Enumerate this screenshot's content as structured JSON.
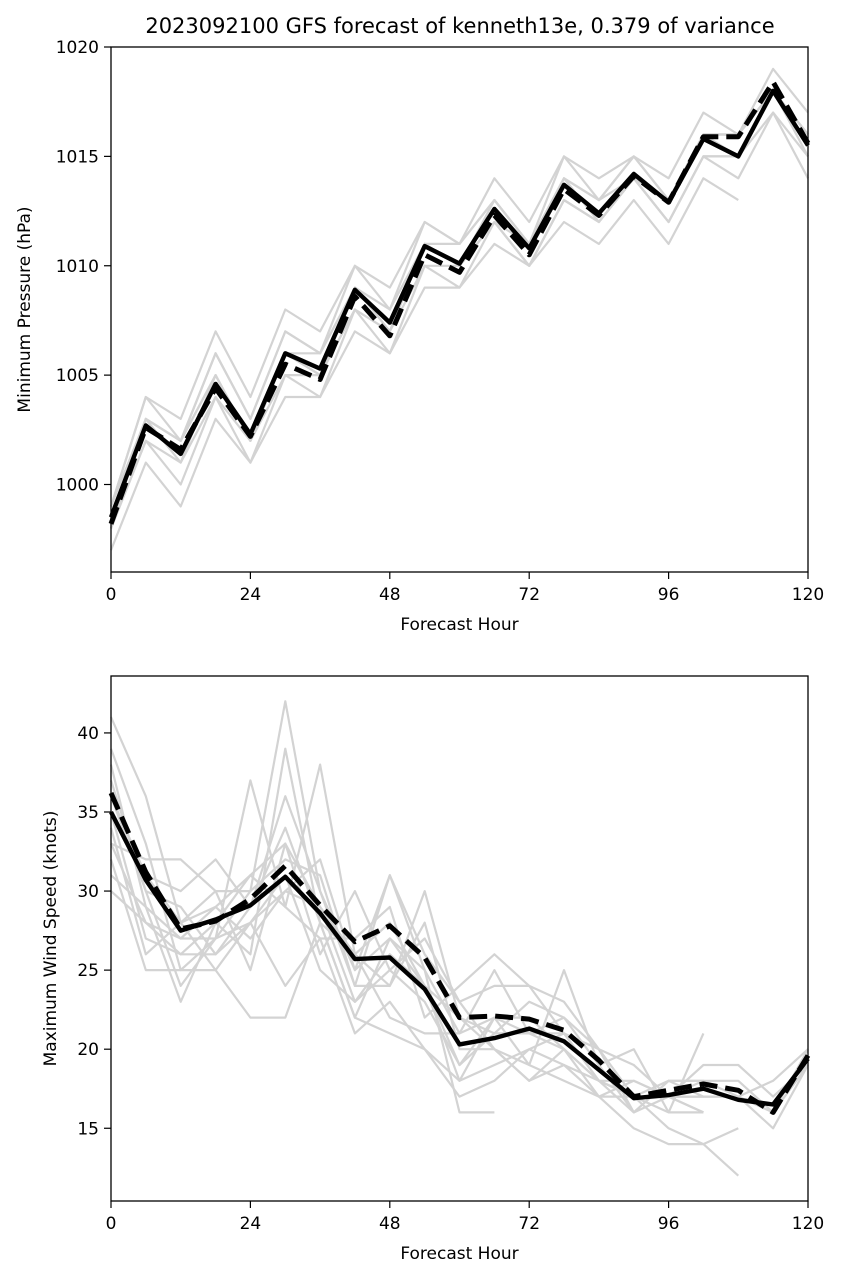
{
  "figure": {
    "title": "2023092100 GFS forecast of kenneth13e, 0.379 of variance"
  },
  "colors": {
    "ensemble": "#d3d3d3",
    "mean": "#000000",
    "axis": "#000000"
  },
  "chart_data": [
    {
      "type": "line",
      "title": "2023092100 GFS forecast of kenneth13e, 0.379 of variance",
      "xlabel": "Forecast Hour",
      "ylabel": "Minimum Pressure (hPa)",
      "xlim": [
        0,
        120
      ],
      "ylim": [
        996,
        1020
      ],
      "xticks": [
        0,
        24,
        48,
        72,
        96,
        120
      ],
      "yticks": [
        1000,
        1005,
        1010,
        1015,
        1020
      ],
      "grid": false,
      "legend": "none",
      "x": [
        0,
        6,
        12,
        18,
        24,
        30,
        36,
        42,
        48,
        54,
        60,
        66,
        72,
        78,
        84,
        90,
        96,
        102,
        108,
        114,
        120
      ],
      "series": [
        {
          "style": "ensemble",
          "values": [
            999,
            1004,
            1003,
            1007,
            1004,
            1008,
            1007,
            1010,
            1009,
            1012,
            1011,
            1014,
            1012,
            1015,
            1014,
            1015,
            1014,
            1017,
            1016,
            1019,
            1017
          ]
        },
        {
          "style": "ensemble",
          "values": [
            998,
            1003,
            1002,
            1006,
            1003,
            1007,
            1006,
            1010,
            1008,
            1012,
            1011,
            1013,
            1011,
            1015,
            1013,
            1015,
            1013,
            1016,
            1016,
            1018,
            1016
          ]
        },
        {
          "style": "ensemble",
          "values": [
            997,
            1001,
            999,
            1003,
            1001,
            1004,
            1004,
            1007,
            1006,
            1009,
            1009,
            1011,
            1010,
            1012,
            1011,
            1013,
            1011,
            1014,
            1013,
            null,
            null
          ]
        },
        {
          "style": "ensemble",
          "values": [
            998,
            1002,
            1000,
            1004,
            1002,
            1005,
            1005,
            1008,
            1007,
            1010,
            1010,
            1012,
            1010,
            1013,
            1012,
            1014,
            1012,
            1015,
            1014,
            1017,
            1014
          ]
        },
        {
          "style": "ensemble",
          "values": [
            999,
            1003,
            1001,
            1005,
            1002,
            1006,
            1005,
            1009,
            1007,
            1011,
            1010,
            1012,
            1011,
            1014,
            1012,
            1014,
            1013,
            1016,
            1015,
            1018,
            1016
          ]
        },
        {
          "style": "ensemble",
          "values": [
            998,
            1002,
            1001,
            1004,
            1001,
            1005,
            1004,
            1008,
            1006,
            1010,
            1009,
            1012,
            1010,
            1013,
            1012,
            1014,
            1012,
            1015,
            1015,
            1017,
            1015
          ]
        },
        {
          "style": "ensemble",
          "values": [
            999,
            1004,
            1002,
            1006,
            1003,
            1007,
            1006,
            1009,
            1008,
            1011,
            1010,
            1013,
            1011,
            1014,
            1013,
            1015,
            1013,
            1016,
            1016,
            1018,
            1016
          ]
        },
        {
          "style": "ensemble",
          "values": [
            998,
            1003,
            1002,
            1005,
            1002,
            1006,
            1005,
            1008,
            1007,
            1011,
            1010,
            1012,
            1010,
            1013,
            1012,
            1014,
            1012,
            1015,
            1015,
            1018,
            1015
          ]
        },
        {
          "style": "ensemble",
          "values": [
            998,
            1003,
            1002,
            1005,
            1002,
            1006,
            1006,
            1009,
            1007,
            1011,
            1011,
            1013,
            1011,
            1014,
            1013,
            1014,
            1013,
            1016,
            1016,
            1018,
            1016
          ]
        },
        {
          "style": "mean-dashed",
          "values": [
            998.2,
            1002.6,
            1001.6,
            1004.4,
            1002.2,
            1005.5,
            1004.8,
            1008.6,
            1006.8,
            1010.5,
            1009.7,
            1012.3,
            1010.5,
            1013.5,
            1012.3,
            1014.1,
            1012.9,
            1015.9,
            1015.9,
            1018.4,
            1015.6
          ]
        },
        {
          "style": "mean-solid",
          "values": [
            998.5,
            1002.7,
            1001.4,
            1004.6,
            1002.3,
            1006.0,
            1005.3,
            1008.9,
            1007.4,
            1010.9,
            1010.1,
            1012.6,
            1010.8,
            1013.7,
            1012.4,
            1014.2,
            1012.9,
            1015.8,
            1015.0,
            1018.0,
            1015.5
          ]
        }
      ]
    },
    {
      "type": "line",
      "title": "",
      "xlabel": "Forecast Hour",
      "ylabel": "Maximum Wind Speed (knots)",
      "xlim": [
        0,
        120
      ],
      "ylim": [
        10.4,
        43.6
      ],
      "xticks": [
        0,
        24,
        48,
        72,
        96,
        120
      ],
      "yticks": [
        15,
        20,
        25,
        30,
        35,
        40
      ],
      "grid": false,
      "legend": "none",
      "x": [
        0,
        6,
        12,
        18,
        24,
        30,
        36,
        42,
        48,
        54,
        60,
        66,
        72,
        78,
        84,
        90,
        96,
        102,
        108,
        114,
        120
      ],
      "series": [
        {
          "style": "ensemble",
          "values": [
            41,
            36,
            28,
            30,
            30,
            42,
            30,
            25,
            31,
            25,
            16,
            16,
            null,
            null,
            null,
            null,
            null,
            null,
            null,
            null,
            null
          ]
        },
        {
          "style": "ensemble",
          "values": [
            39,
            33,
            25,
            27,
            37,
            29,
            38,
            26,
            24,
            30,
            22,
            20,
            18,
            20,
            18,
            17,
            15,
            14,
            12,
            null,
            null
          ]
        },
        {
          "style": "ensemble",
          "values": [
            38,
            29,
            23,
            28,
            26,
            39,
            28,
            22,
            27,
            25,
            21,
            22,
            19,
            25,
            19,
            20,
            16,
            16,
            null,
            null,
            null
          ]
        },
        {
          "style": "ensemble",
          "values": [
            37,
            30,
            29,
            26,
            29,
            36,
            30,
            24,
            31,
            26,
            23,
            20,
            18,
            19,
            17,
            17,
            16,
            21,
            null,
            null,
            null
          ]
        },
        {
          "style": "ensemble",
          "values": [
            36,
            31,
            30,
            32,
            29,
            34,
            28,
            26,
            22,
            21,
            21,
            25,
            21,
            22,
            19,
            16,
            18,
            18,
            18,
            16,
            20
          ]
        },
        {
          "style": "ensemble",
          "values": [
            35,
            27,
            26,
            26,
            28,
            24,
            27,
            27,
            29,
            22,
            24,
            26,
            24,
            21,
            20,
            17,
            17,
            19,
            19,
            17,
            19
          ]
        },
        {
          "style": "ensemble",
          "values": [
            34,
            26,
            28,
            25,
            28,
            31,
            25,
            23,
            25,
            23,
            19,
            22,
            22,
            20,
            18,
            18,
            17,
            16,
            null,
            null,
            null
          ]
        },
        {
          "style": "ensemble",
          "values": [
            33,
            32,
            32,
            30,
            25,
            33,
            26,
            30,
            25,
            27,
            23,
            24,
            24,
            23,
            20,
            16,
            18,
            17,
            17,
            16,
            19
          ]
        },
        {
          "style": "ensemble",
          "values": [
            33,
            28,
            27,
            27,
            30,
            32,
            31,
            24,
            24,
            28,
            20,
            20,
            19,
            18,
            17,
            15,
            14,
            14,
            15,
            null,
            null
          ]
        },
        {
          "style": "ensemble",
          "values": [
            32,
            25,
            25,
            25,
            22,
            22,
            28,
            22,
            21,
            20,
            18,
            22,
            21,
            21,
            18,
            17,
            18,
            18,
            null,
            null,
            null
          ]
        },
        {
          "style": "ensemble",
          "values": [
            31,
            29,
            27,
            29,
            27,
            30,
            29,
            23,
            26,
            24,
            19,
            21,
            21,
            20,
            17,
            18,
            17,
            17,
            17,
            18,
            20
          ]
        },
        {
          "style": "ensemble",
          "values": [
            30,
            28,
            26,
            28,
            31,
            29,
            27,
            21,
            23,
            20,
            17,
            18,
            20,
            19,
            18,
            17,
            17,
            18,
            17,
            15,
            19
          ]
        },
        {
          "style": "ensemble",
          "values": [
            36,
            30,
            24,
            27,
            28,
            30,
            32,
            25,
            27,
            24,
            22,
            21,
            23,
            22,
            20,
            19,
            17,
            17,
            null,
            null,
            null
          ]
        },
        {
          "style": "ensemble",
          "values": [
            35,
            31,
            28,
            29,
            31,
            33,
            29,
            26,
            28,
            24,
            18,
            19,
            20,
            21,
            18,
            16,
            17,
            16,
            null,
            null,
            null
          ]
        },
        {
          "style": "mean-dashed",
          "values": [
            36.2,
            31.2,
            27.6,
            28.1,
            29.5,
            31.6,
            29.1,
            26.8,
            27.8,
            25.8,
            22.0,
            22.1,
            21.9,
            21.2,
            19.3,
            17.0,
            17.4,
            17.8,
            17.4,
            16.0,
            19.6
          ]
        },
        {
          "style": "mean-solid",
          "values": [
            35.0,
            30.7,
            27.5,
            28.2,
            29.1,
            30.9,
            28.6,
            25.7,
            25.8,
            23.8,
            20.3,
            20.7,
            21.3,
            20.5,
            18.7,
            16.9,
            17.1,
            17.5,
            16.8,
            16.5,
            19.4
          ]
        }
      ]
    }
  ]
}
